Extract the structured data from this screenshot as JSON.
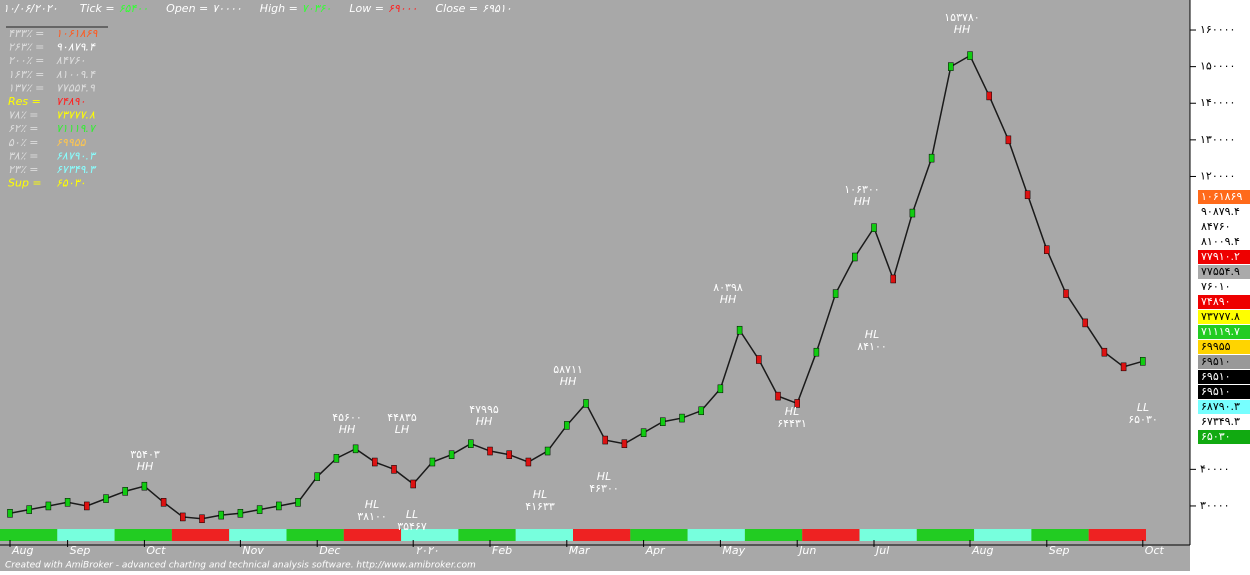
{
  "chart_data": {
    "type": "line",
    "header": [
      {
        "label": "۱۰/۰۶/۲۰۲۰",
        "value": "",
        "color": "#fff"
      },
      {
        "label": "Tick =",
        "value": "۶۵۴۰۰",
        "color": "#3f3"
      },
      {
        "label": "Open =",
        "value": "۷۰۰۰۰",
        "color": "#fff"
      },
      {
        "label": "High =",
        "value": "۷۰۳۶۰",
        "color": "#3f3"
      },
      {
        "label": "Low =",
        "value": "۶۹۰۰۰",
        "color": "#f22"
      },
      {
        "label": "Close =",
        "value": "۶۹۵۱۰",
        "color": "#fff"
      }
    ],
    "levels": [
      {
        "label": "۴۳۳٪ =",
        "value": "۱۰۶۱۸۶۹",
        "color": "#ff5a1f"
      },
      {
        "label": "۲۶۳٪ =",
        "value": "۹۰۸۷۹.۴",
        "color": "#fff"
      },
      {
        "label": "۲۰۰٪ =",
        "value": "۸۴۷۶۰",
        "color": "#ddd"
      },
      {
        "label": "۱۶۳٪ =",
        "value": "۸۱۰۰۹.۴",
        "color": "#ddd"
      },
      {
        "label": "۱۳۷٪ =",
        "value": "۷۷۵۵۴.۹",
        "color": "#ddd"
      },
      {
        "label": "Res =",
        "value": "۷۴۸۹۰",
        "color": "#f22"
      },
      {
        "label": "۷۸٪ =",
        "value": "۷۳۷۷۷.۸",
        "color": "#ff0"
      },
      {
        "label": "۶۲٪ =",
        "value": "۷۱۱۱۹.۷",
        "color": "#3e3"
      },
      {
        "label": "۵۰٪ =",
        "value": "۶۹۹۵۵",
        "color": "#ffc64d"
      },
      {
        "label": "۳۸٪ =",
        "value": "۶۸۷۹۰.۳",
        "color": "#8ff"
      },
      {
        "label": "۲۳٪ =",
        "value": "۶۷۳۴۹.۳",
        "color": "#8ff"
      },
      {
        "label": "Sup =",
        "value": "۶۵۰۳۰",
        "color": "#ff0"
      }
    ],
    "level_boxes": [
      {
        "label": "۱۰۶۱۸۶۹",
        "color": "#ff6a1a"
      },
      {
        "label": "۹۰۸۷۹.۴",
        "color": "#fff"
      },
      {
        "label": "۸۴۷۶۰",
        "color": "#fff"
      },
      {
        "label": "۸۱۰۰۹.۴",
        "color": "#fff"
      },
      {
        "label": "۷۷۹۱۰.۲",
        "color": "#e00"
      },
      {
        "label": "۷۷۵۵۴.۹",
        "color": "#aaa"
      },
      {
        "label": "۷۶۰۱۰",
        "color": "#fff"
      },
      {
        "label": "۷۴۸۹۰",
        "color": "#e00"
      },
      {
        "label": "۷۳۷۷۷.۸",
        "color": "#ff0"
      },
      {
        "label": "۷۱۱۱۹.۷",
        "color": "#2c2"
      },
      {
        "label": "۶۹۹۵۵",
        "color": "#ffd400"
      },
      {
        "label": "۶۹۵۱۰",
        "color": "#999"
      },
      {
        "label": "۶۹۵۱۰",
        "color": "#000"
      },
      {
        "label": "۶۹۵۱۰",
        "color": "#000"
      },
      {
        "label": "۶۸۷۹۰.۳",
        "color": "#7ff"
      },
      {
        "label": "۶۷۳۴۹.۳",
        "color": "#fff"
      },
      {
        "label": "۶۵۰۳۰",
        "color": "#1a1"
      }
    ],
    "annotations": [
      {
        "value": "۱۵۳۷۸۰",
        "kind": "HH"
      },
      {
        "value": "۱۰۶۳۰۰",
        "kind": "HH"
      },
      {
        "value": "۸۰۳۹۸",
        "kind": "HH"
      },
      {
        "value": "۵۸۷۱۱",
        "kind": "HH"
      },
      {
        "value": "۴۷۹۹۵",
        "kind": "HH"
      },
      {
        "value": "۴۵۶۰۰",
        "kind": "HH"
      },
      {
        "value": "۴۴۸۳۵",
        "kind": "LH"
      },
      {
        "value": "۳۵۴۰۳",
        "kind": "HH"
      },
      {
        "value": "۸۴۱۰۰",
        "kind": "HL"
      },
      {
        "value": "۶۴۴۳۱",
        "kind": "HL"
      },
      {
        "value": "۴۶۳۰۰",
        "kind": "HL"
      },
      {
        "value": "۴۱۶۳۳",
        "kind": "HL"
      },
      {
        "value": "۳۸۱۰۰",
        "kind": "HL"
      },
      {
        "value": "۳۵۴۶۷",
        "kind": "LL"
      },
      {
        "value": "۶۵۰۳۰",
        "kind": "LL"
      }
    ],
    "categories": [
      "Aug",
      null,
      null,
      "Sep",
      null,
      null,
      null,
      "Oct",
      null,
      null,
      null,
      null,
      "Nov",
      null,
      null,
      null,
      "Dec",
      null,
      null,
      null,
      null,
      "۲۰۲۰",
      null,
      null,
      null,
      "Feb",
      null,
      null,
      null,
      "Mar",
      null,
      null,
      null,
      "Apr",
      null,
      null,
      null,
      "May",
      null,
      null,
      null,
      "Jun",
      null,
      null,
      null,
      "Jul",
      null,
      null,
      null,
      null,
      "Aug",
      null,
      null,
      null,
      "Sep",
      null,
      null,
      null,
      null,
      "Oct"
    ],
    "values": [
      28000,
      29000,
      30000,
      31000,
      30000,
      32000,
      34000,
      35400,
      31000,
      27000,
      26500,
      27500,
      28000,
      29000,
      30000,
      31000,
      38000,
      43000,
      45600,
      42000,
      40000,
      36000,
      42000,
      44000,
      47000,
      45000,
      44000,
      42000,
      45000,
      52000,
      58000,
      48000,
      47000,
      50000,
      53000,
      54000,
      56000,
      62000,
      78000,
      70000,
      60000,
      58000,
      72000,
      88000,
      98000,
      106000,
      92000,
      110000,
      125000,
      150000,
      153000,
      142000,
      130000,
      115000,
      100000,
      88000,
      80000,
      72000,
      68000,
      69510
    ],
    "color": "#1a1a1a",
    "ylim": [
      20700,
      168200
    ],
    "yticks": [
      {
        "value": 160000,
        "label": "۱۶۰۰۰۰"
      },
      {
        "value": 150000,
        "label": "۱۵۰۰۰۰"
      },
      {
        "value": 140000,
        "label": "۱۴۰۰۰۰"
      },
      {
        "value": 130000,
        "label": "۱۳۰۰۰۰"
      },
      {
        "value": 120000,
        "label": "۱۲۰۰۰۰"
      },
      {
        "value": 40000,
        "label": "۴۰۰۰۰"
      },
      {
        "value": 30000,
        "label": "۳۰۰۰۰"
      }
    ],
    "footer": "Created with AmiBroker - advanced charting and technical analysis software. http://www.amibroker.com"
  }
}
